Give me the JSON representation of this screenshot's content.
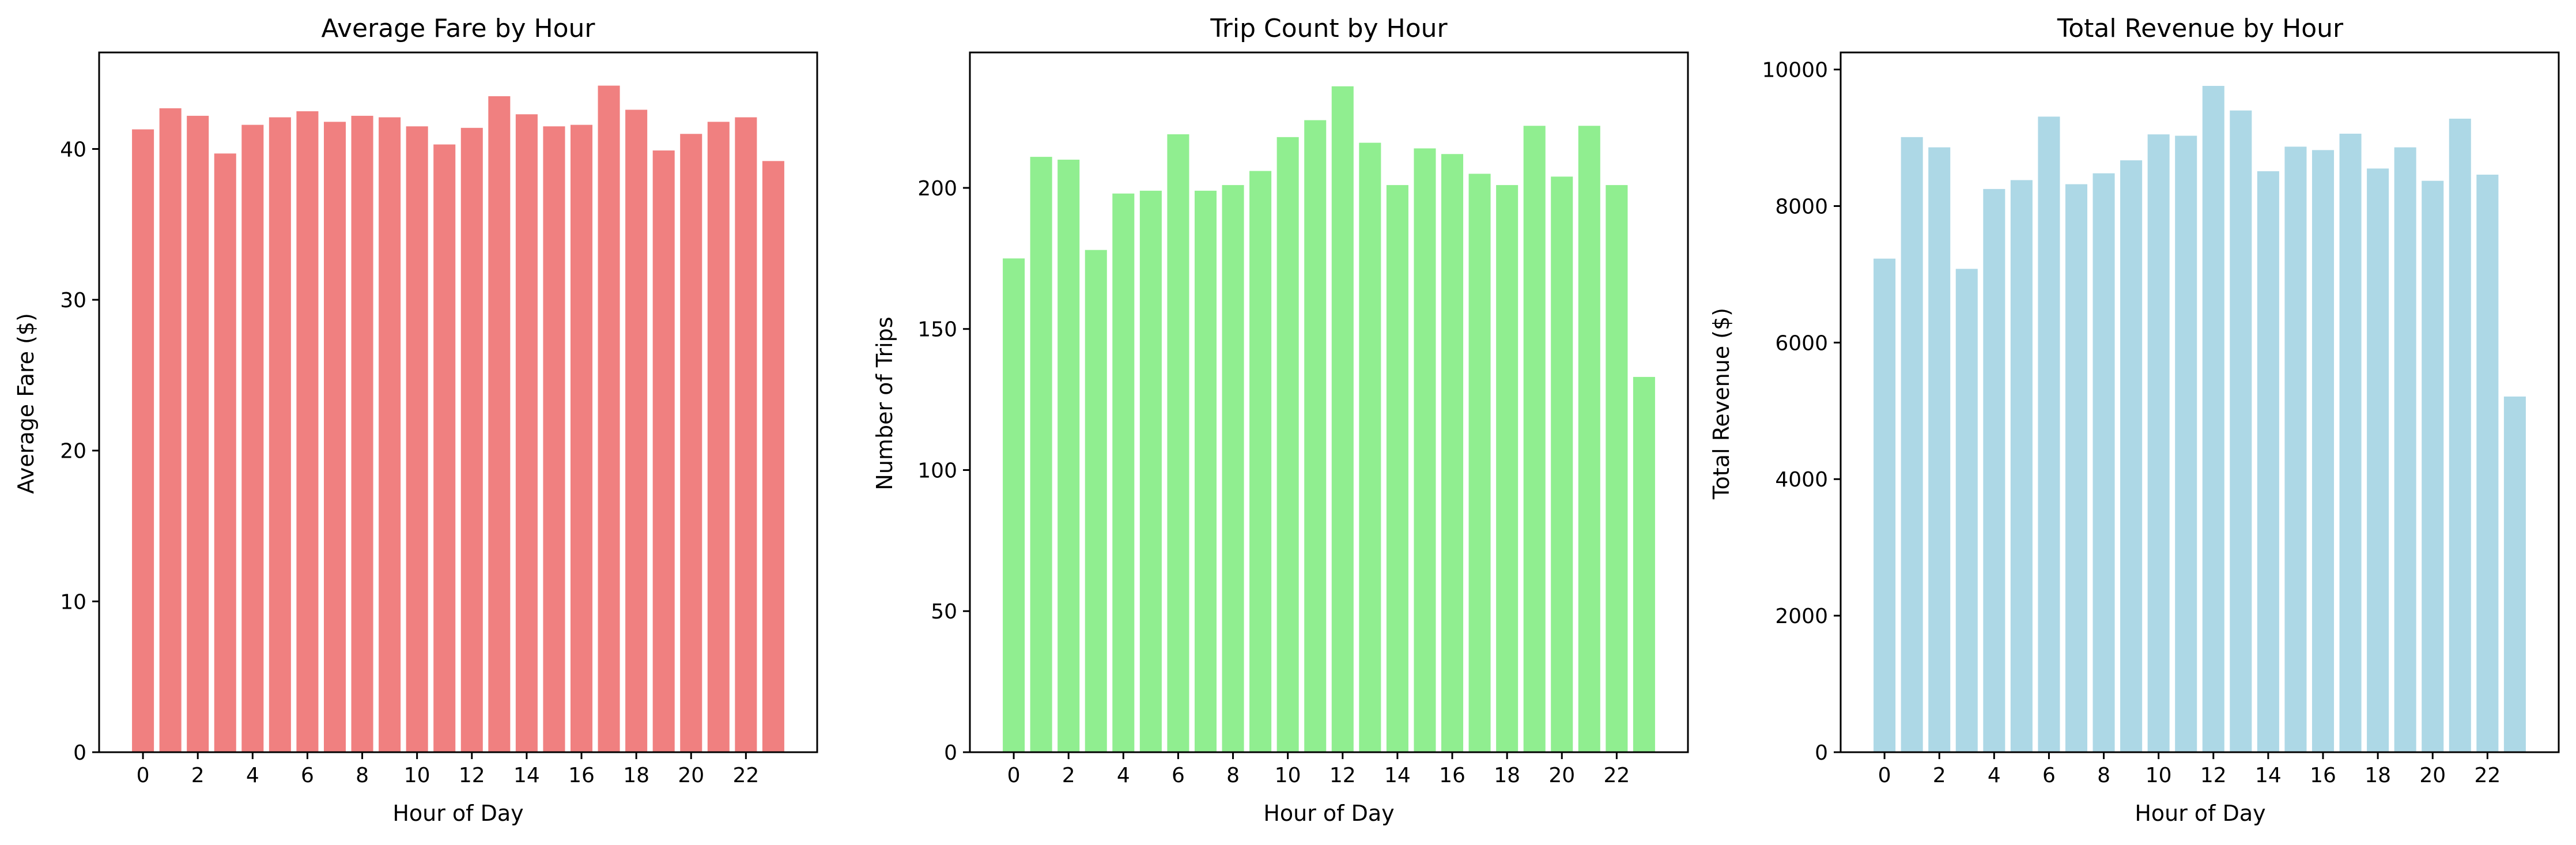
{
  "background": "#ffffff",
  "chart_data": [
    {
      "type": "bar",
      "title": "Average Fare by Hour",
      "xlabel": "Hour of Day",
      "ylabel": "Average Fare ($)",
      "color": "#f08080",
      "x": [
        0,
        1,
        2,
        3,
        4,
        5,
        6,
        7,
        8,
        9,
        10,
        11,
        12,
        13,
        14,
        15,
        16,
        17,
        18,
        19,
        20,
        21,
        22,
        23
      ],
      "values": [
        41.3,
        42.7,
        42.2,
        39.7,
        41.6,
        42.1,
        42.5,
        41.8,
        42.2,
        42.1,
        41.5,
        40.3,
        41.4,
        43.5,
        42.3,
        41.5,
        41.6,
        44.2,
        42.6,
        39.9,
        41.0,
        41.8,
        42.1,
        39.2
      ],
      "xticks": [
        0,
        2,
        4,
        6,
        8,
        10,
        12,
        14,
        16,
        18,
        20,
        22
      ],
      "yticks": [
        0,
        10,
        20,
        30,
        40
      ],
      "xlim": [
        -1.6,
        24.6
      ],
      "ylim": [
        0,
        46.4
      ],
      "grid": false
    },
    {
      "type": "bar",
      "title": "Trip Count by Hour",
      "xlabel": "Hour of Day",
      "ylabel": "Number of Trips",
      "color": "#90ee90",
      "x": [
        0,
        1,
        2,
        3,
        4,
        5,
        6,
        7,
        8,
        9,
        10,
        11,
        12,
        13,
        14,
        15,
        16,
        17,
        18,
        19,
        20,
        21,
        22,
        23
      ],
      "values": [
        175,
        211,
        210,
        178,
        198,
        199,
        219,
        199,
        201,
        206,
        218,
        224,
        236,
        216,
        201,
        214,
        212,
        205,
        201,
        222,
        204,
        222,
        201,
        133
      ],
      "xticks": [
        0,
        2,
        4,
        6,
        8,
        10,
        12,
        14,
        16,
        18,
        20,
        22
      ],
      "yticks": [
        0,
        50,
        100,
        150,
        200
      ],
      "xlim": [
        -1.6,
        24.6
      ],
      "ylim": [
        0,
        248
      ],
      "grid": false
    },
    {
      "type": "bar",
      "title": "Total Revenue by Hour",
      "xlabel": "Hour of Day",
      "ylabel": "Total Revenue ($)",
      "color": "#add8e6",
      "x": [
        0,
        1,
        2,
        3,
        4,
        5,
        6,
        7,
        8,
        9,
        10,
        11,
        12,
        13,
        14,
        15,
        16,
        17,
        18,
        19,
        20,
        21,
        22,
        23
      ],
      "values": [
        7230,
        9010,
        8860,
        7080,
        8250,
        8380,
        9310,
        8320,
        8480,
        8670,
        9050,
        9030,
        9760,
        9400,
        8510,
        8870,
        8820,
        9060,
        8550,
        8860,
        8370,
        9280,
        8460,
        5210
      ],
      "xticks": [
        0,
        2,
        4,
        6,
        8,
        10,
        12,
        14,
        16,
        18,
        20,
        22
      ],
      "yticks": [
        0,
        2000,
        4000,
        6000,
        8000,
        10000
      ],
      "xlim": [
        -1.6,
        24.6
      ],
      "ylim": [
        0,
        10250
      ],
      "grid": false
    }
  ]
}
